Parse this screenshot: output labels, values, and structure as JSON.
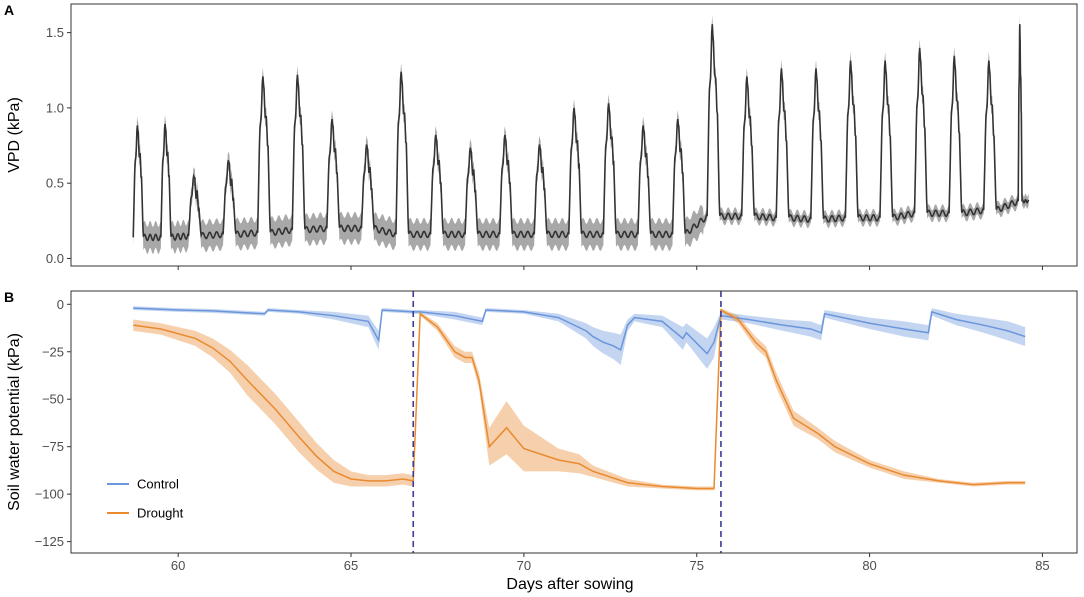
{
  "figure": {
    "x_axis_title": "Days after sowing"
  },
  "chart_data": [
    {
      "panel": "A",
      "type": "line",
      "xlabel": "Days after sowing",
      "ylabel": "VPD (kPa)",
      "xlim": [
        56.9,
        86.0
      ],
      "ylim": [
        -0.05,
        1.69
      ],
      "xticks": [
        60,
        65,
        70,
        75,
        80,
        85
      ],
      "yticks": [
        0.0,
        0.5,
        1.0,
        1.5
      ],
      "ytick_labels": [
        "0.0",
        "0.5",
        "1.0",
        "1.5"
      ],
      "xtick_labels_shown": false,
      "start": 58.7,
      "end": 84.6,
      "days": [
        {
          "d": 58.7,
          "peak": 0.84,
          "night": 0.14
        },
        {
          "d": 59.5,
          "peak": 0.85,
          "night": 0.14
        },
        {
          "d": 60.3,
          "peak": 0.52,
          "night": 0.15
        },
        {
          "d": 61.3,
          "peak": 0.62,
          "night": 0.16
        },
        {
          "d": 62.3,
          "peak": 1.15,
          "night": 0.17
        },
        {
          "d": 63.3,
          "peak": 1.16,
          "night": 0.19
        },
        {
          "d": 64.3,
          "peak": 0.88,
          "night": 0.2
        },
        {
          "d": 65.3,
          "peak": 0.72,
          "night": 0.2
        },
        {
          "d": 66.3,
          "peak": 1.18,
          "night": 0.16
        },
        {
          "d": 67.3,
          "peak": 0.78,
          "night": 0.16
        },
        {
          "d": 68.3,
          "peak": 0.7,
          "night": 0.16
        },
        {
          "d": 69.3,
          "peak": 0.78,
          "night": 0.16
        },
        {
          "d": 70.3,
          "peak": 0.72,
          "night": 0.16
        },
        {
          "d": 71.3,
          "peak": 0.95,
          "night": 0.16
        },
        {
          "d": 72.3,
          "peak": 0.98,
          "night": 0.16
        },
        {
          "d": 73.3,
          "peak": 0.84,
          "night": 0.16
        },
        {
          "d": 74.3,
          "peak": 0.88,
          "night": 0.16
        },
        {
          "d": 75.3,
          "peak": 1.48,
          "night": 0.28
        },
        {
          "d": 76.3,
          "peak": 1.15,
          "night": 0.28
        },
        {
          "d": 77.3,
          "peak": 1.2,
          "night": 0.27
        },
        {
          "d": 78.3,
          "peak": 1.2,
          "night": 0.26
        },
        {
          "d": 79.3,
          "peak": 1.25,
          "night": 0.27
        },
        {
          "d": 80.3,
          "peak": 1.25,
          "night": 0.27
        },
        {
          "d": 81.3,
          "peak": 1.33,
          "night": 0.3
        },
        {
          "d": 82.3,
          "peak": 1.28,
          "night": 0.3
        },
        {
          "d": 83.3,
          "peak": 1.25,
          "night": 0.32
        },
        {
          "d": 84.3,
          "peak": 1.48,
          "night": 0.38
        }
      ],
      "series": [
        {
          "name": "VPD",
          "color": "#333333",
          "ribbon_color": "#999999"
        }
      ]
    },
    {
      "panel": "B",
      "type": "line",
      "xlabel": "Days after sowing",
      "ylabel": "Soil water potential (kPa)",
      "xlim": [
        56.9,
        86.0
      ],
      "ylim": [
        -131,
        7
      ],
      "xticks": [
        60,
        65,
        70,
        75,
        80,
        85
      ],
      "xtick_labels": [
        "60",
        "65",
        "70",
        "75",
        "80",
        "85"
      ],
      "yticks": [
        0,
        -25,
        -50,
        -75,
        -100,
        -125
      ],
      "ytick_labels": [
        "0",
        "−25",
        "−50",
        "−75",
        "−100",
        "−125"
      ],
      "reference_lines_x": [
        66.8,
        75.7
      ],
      "reference_line_color": "#3c3c9c",
      "legend": {
        "placement": "bottom-left",
        "entries": [
          "Control",
          "Drought"
        ]
      },
      "series": [
        {
          "name": "Control",
          "color": "#6b96db",
          "x": [
            58.7,
            60.0,
            61.0,
            62.0,
            62.5,
            62.6,
            63.5,
            64.5,
            65.5,
            65.8,
            65.9,
            66.8,
            67.0,
            68.0,
            68.8,
            68.9,
            70.0,
            71.0,
            71.8,
            72.0,
            72.3,
            72.6,
            72.8,
            73.0,
            73.2,
            74.0,
            74.6,
            74.7,
            75.3,
            75.5,
            75.7,
            76.5,
            77.5,
            78.3,
            78.6,
            78.7,
            80.0,
            81.0,
            81.7,
            81.8,
            82.5,
            83.3,
            84.0,
            84.5
          ],
          "y": [
            -2,
            -3,
            -3.5,
            -4.5,
            -5,
            -3,
            -4,
            -6,
            -9,
            -19,
            -3,
            -4,
            -4,
            -6,
            -9,
            -3,
            -4,
            -7,
            -14,
            -17,
            -20,
            -22,
            -24,
            -11,
            -7,
            -9,
            -18,
            -15,
            -26,
            -20,
            -6,
            -8,
            -11,
            -13,
            -15,
            -5,
            -10,
            -13,
            -15,
            -4,
            -8,
            -11,
            -14,
            -17
          ],
          "band_half_width": [
            1,
            1,
            1,
            1,
            1,
            1,
            1,
            2,
            3,
            5,
            1,
            1,
            1,
            2,
            2,
            1,
            1,
            2,
            4,
            5,
            6,
            7,
            8,
            3,
            2,
            3,
            6,
            5,
            8,
            8,
            2,
            2,
            3,
            4,
            4,
            2,
            3,
            4,
            4,
            2,
            3,
            4,
            5,
            5
          ]
        },
        {
          "name": "Drought",
          "color": "#e98a2f",
          "x": [
            58.7,
            59.5,
            60.5,
            61.0,
            61.5,
            62.0,
            62.8,
            63.5,
            64.0,
            64.5,
            65.0,
            65.5,
            66.0,
            66.5,
            66.8,
            67.0,
            67.5,
            68.0,
            68.3,
            68.5,
            68.7,
            69.0,
            69.5,
            70.0,
            71.0,
            71.6,
            71.8,
            72.0,
            73.0,
            74.0,
            75.0,
            75.5,
            75.7,
            76.2,
            76.7,
            77.0,
            77.3,
            77.8,
            78.5,
            79.0,
            80.0,
            81.0,
            82.0,
            83.0,
            84.0,
            84.5
          ],
          "y": [
            -11,
            -13,
            -18,
            -23,
            -30,
            -40,
            -55,
            -70,
            -80,
            -88,
            -92,
            -93,
            -93,
            -92,
            -93,
            -5,
            -12,
            -25,
            -28,
            -28,
            -40,
            -75,
            -65,
            -76,
            -82,
            -84,
            -86,
            -88,
            -94,
            -96,
            -97,
            -97,
            -3,
            -8,
            -20,
            -25,
            -40,
            -60,
            -68,
            -75,
            -84,
            -90,
            -93,
            -95,
            -94,
            -94
          ],
          "band_half_width": [
            3,
            3,
            4,
            5,
            6,
            8,
            8,
            8,
            7,
            6,
            4,
            3,
            3,
            3,
            3,
            1,
            2,
            3,
            3,
            3,
            4,
            10,
            14,
            12,
            6,
            5,
            4,
            3,
            2,
            1,
            1,
            1,
            1,
            2,
            3,
            3,
            4,
            4,
            3,
            3,
            2,
            2,
            1,
            1,
            1,
            1
          ]
        }
      ]
    }
  ]
}
